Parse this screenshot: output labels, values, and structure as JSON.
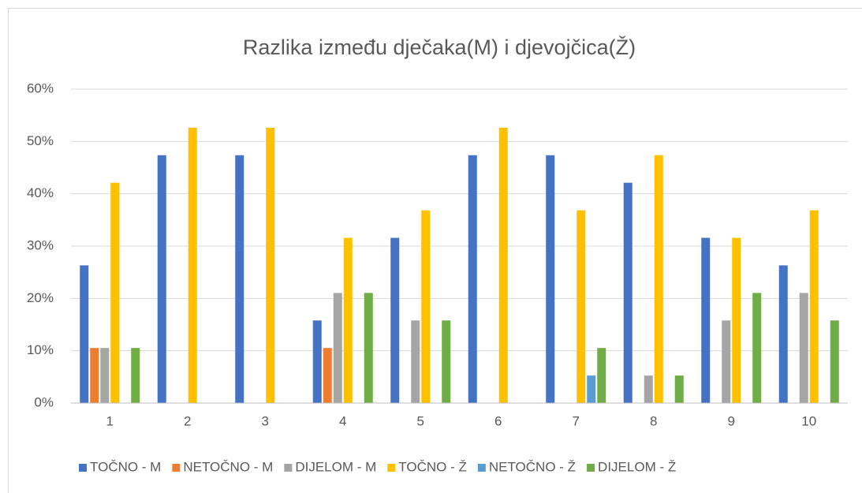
{
  "chart_data": {
    "type": "bar",
    "title": "Razlika između dječaka(M) i djevojčica(Ž)",
    "categories": [
      "1",
      "2",
      "3",
      "4",
      "5",
      "6",
      "7",
      "8",
      "9",
      "10"
    ],
    "series": [
      {
        "name": "TOČNO - M",
        "color": "#4472c4",
        "values": [
          26.32,
          47.37,
          47.37,
          15.79,
          31.58,
          47.37,
          47.37,
          42.11,
          31.58,
          26.32
        ]
      },
      {
        "name": "NETOČNO - M",
        "color": "#ed7d31",
        "values": [
          10.53,
          0,
          0,
          10.53,
          0,
          0,
          0,
          0,
          0,
          0
        ]
      },
      {
        "name": "DIJELOM - M",
        "color": "#a5a5a5",
        "values": [
          10.53,
          0,
          0,
          21.05,
          15.79,
          0,
          0,
          5.26,
          15.79,
          21.05
        ]
      },
      {
        "name": "TOČNO - Ž",
        "color": "#ffc000",
        "values": [
          42.11,
          52.63,
          52.63,
          31.58,
          36.84,
          52.63,
          36.84,
          47.37,
          31.58,
          36.84
        ]
      },
      {
        "name": "NETOČNO - Ž",
        "color": "#5b9bd5",
        "values": [
          0,
          0,
          0,
          0,
          0,
          0,
          5.26,
          0,
          0,
          0
        ]
      },
      {
        "name": "DIJELOM - Ž",
        "color": "#70ad47",
        "values": [
          10.53,
          0,
          0,
          21.05,
          15.79,
          0,
          10.53,
          5.26,
          21.05,
          15.79
        ]
      }
    ],
    "ylim": [
      0,
      60
    ],
    "yticks": [
      {
        "value": 0,
        "label": "0%"
      },
      {
        "value": 10,
        "label": "10%"
      },
      {
        "value": 20,
        "label": "20%"
      },
      {
        "value": 30,
        "label": "30%"
      },
      {
        "value": 40,
        "label": "40%"
      },
      {
        "value": 50,
        "label": "50%"
      },
      {
        "value": 60,
        "label": "60%"
      }
    ],
    "grid": true,
    "legend": "bottom"
  }
}
